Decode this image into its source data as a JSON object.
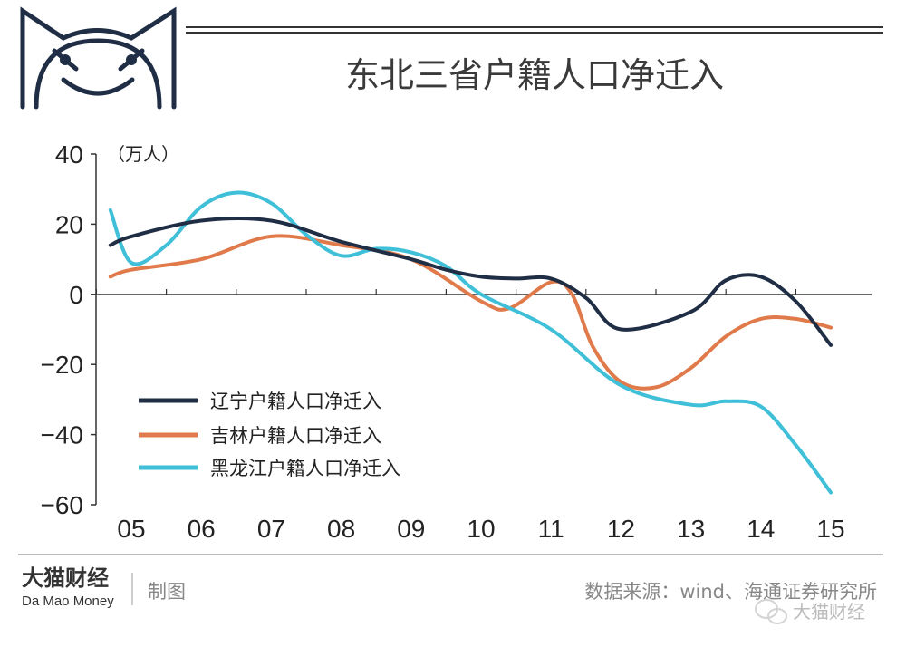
{
  "colors": {
    "liaoning": "#1f2d45",
    "jilin": "#e07a4a",
    "heilongjiang": "#3fbfd8",
    "axis": "#333333"
  },
  "logo": {
    "icon": "cat-face-icon"
  },
  "brand": {
    "name_cn": "大猫财经",
    "name_en": "Da Mao Money",
    "made": "制图"
  },
  "footer": {
    "source": "数据来源：wind、海通证券研究所"
  },
  "watermark": {
    "text": "大猫财经",
    "icon": "wechat-icon"
  },
  "chart_data": {
    "type": "line",
    "title": "东北三省户籍人口净迁入",
    "ylabel": "（万人）",
    "xlabel": "",
    "categories": [
      "05",
      "06",
      "07",
      "08",
      "09",
      "10",
      "11",
      "12",
      "13",
      "14",
      "15"
    ],
    "ylim": [
      -60,
      40
    ],
    "yticks": [
      "40",
      "20",
      "0",
      "−20",
      "−40",
      "−60"
    ],
    "grid": false,
    "legend_position": "lower-left",
    "series": [
      {
        "name": "辽宁户籍人口净迁入",
        "key": "liaoning",
        "x": [
          2004.7,
          2005,
          2006,
          2007,
          2008,
          2009,
          2009.5,
          2010,
          2010.5,
          2011,
          2011.5,
          2012,
          2013,
          2013.5,
          2014,
          2014.5,
          2015
        ],
        "values": [
          14,
          16.5,
          21,
          21,
          15,
          10,
          7,
          5,
          4.5,
          4.5,
          -1,
          -10,
          -5,
          4,
          5,
          -2,
          -14.5
        ]
      },
      {
        "name": "吉林户籍人口净迁入",
        "key": "jilin",
        "x": [
          2004.7,
          2005,
          2006,
          2007,
          2008,
          2009,
          2010,
          2010.4,
          2011,
          2011.3,
          2011.6,
          2012,
          2012.5,
          2013,
          2013.5,
          2014,
          2014.5,
          2015
        ],
        "values": [
          5,
          7,
          10,
          16.5,
          14,
          10,
          -2,
          -4,
          3.5,
          0,
          -15,
          -25,
          -26.5,
          -21,
          -12,
          -7,
          -7,
          -9.5
        ]
      },
      {
        "name": "黑龙江户籍人口净迁入",
        "key": "heilongjiang",
        "x": [
          2004.7,
          2005,
          2005.5,
          2006,
          2006.5,
          2007,
          2007.5,
          2008,
          2008.5,
          2009,
          2009.5,
          2010,
          2011,
          2012,
          2013,
          2013.5,
          2014,
          2014.5,
          2015
        ],
        "values": [
          24,
          9,
          14,
          25,
          29,
          26,
          17,
          11,
          13,
          12,
          8,
          0,
          -10,
          -26,
          -31.5,
          -30.5,
          -32,
          -43,
          -56.5
        ]
      }
    ]
  }
}
